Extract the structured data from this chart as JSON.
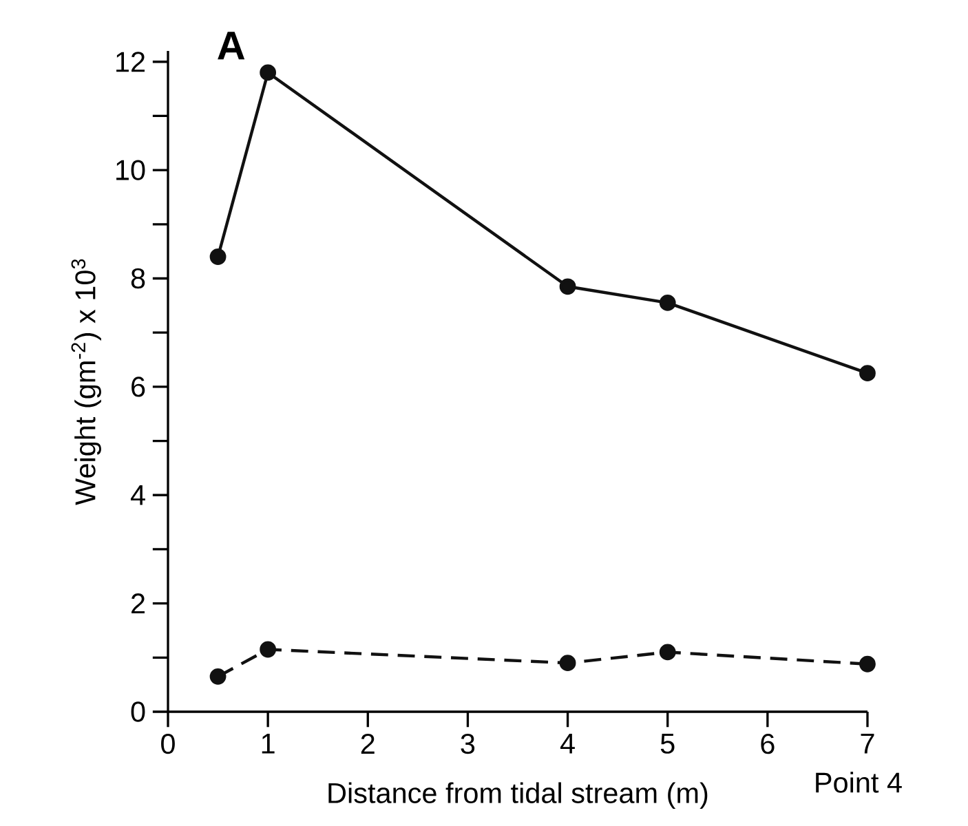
{
  "chart_data": {
    "type": "line",
    "title": "A",
    "xlabel": "Distance from tidal stream (m)",
    "ylabel": "Weight (gm$^{-2}$) x 10$^{3}$",
    "annotations": [
      "Point 4"
    ],
    "x": [
      0.5,
      1,
      4,
      5,
      7
    ],
    "series": [
      {
        "color": "#111111",
        "line_style": "solid",
        "values": [
          8.4,
          11.8,
          7.85,
          7.55,
          6.25
        ]
      },
      {
        "color": "#111111",
        "line_style": "dashed",
        "values": [
          0.65,
          1.15,
          0.9,
          1.1,
          0.88
        ]
      }
    ],
    "marker": "circle",
    "xlim": [
      0,
      7
    ],
    "ylim": [
      0,
      12.2
    ],
    "xticks": [
      0,
      1,
      2,
      3,
      4,
      5,
      6,
      7
    ],
    "yticks": [
      0,
      {
        "value": 1,
        "label": null
      },
      2,
      {
        "value": 3,
        "label": null
      },
      4,
      {
        "value": 5,
        "label": null
      },
      6,
      {
        "value": 7,
        "label": null
      },
      8,
      {
        "value": 9,
        "label": null
      },
      10,
      {
        "value": 11,
        "label": null
      },
      12
    ],
    "grid": false
  }
}
